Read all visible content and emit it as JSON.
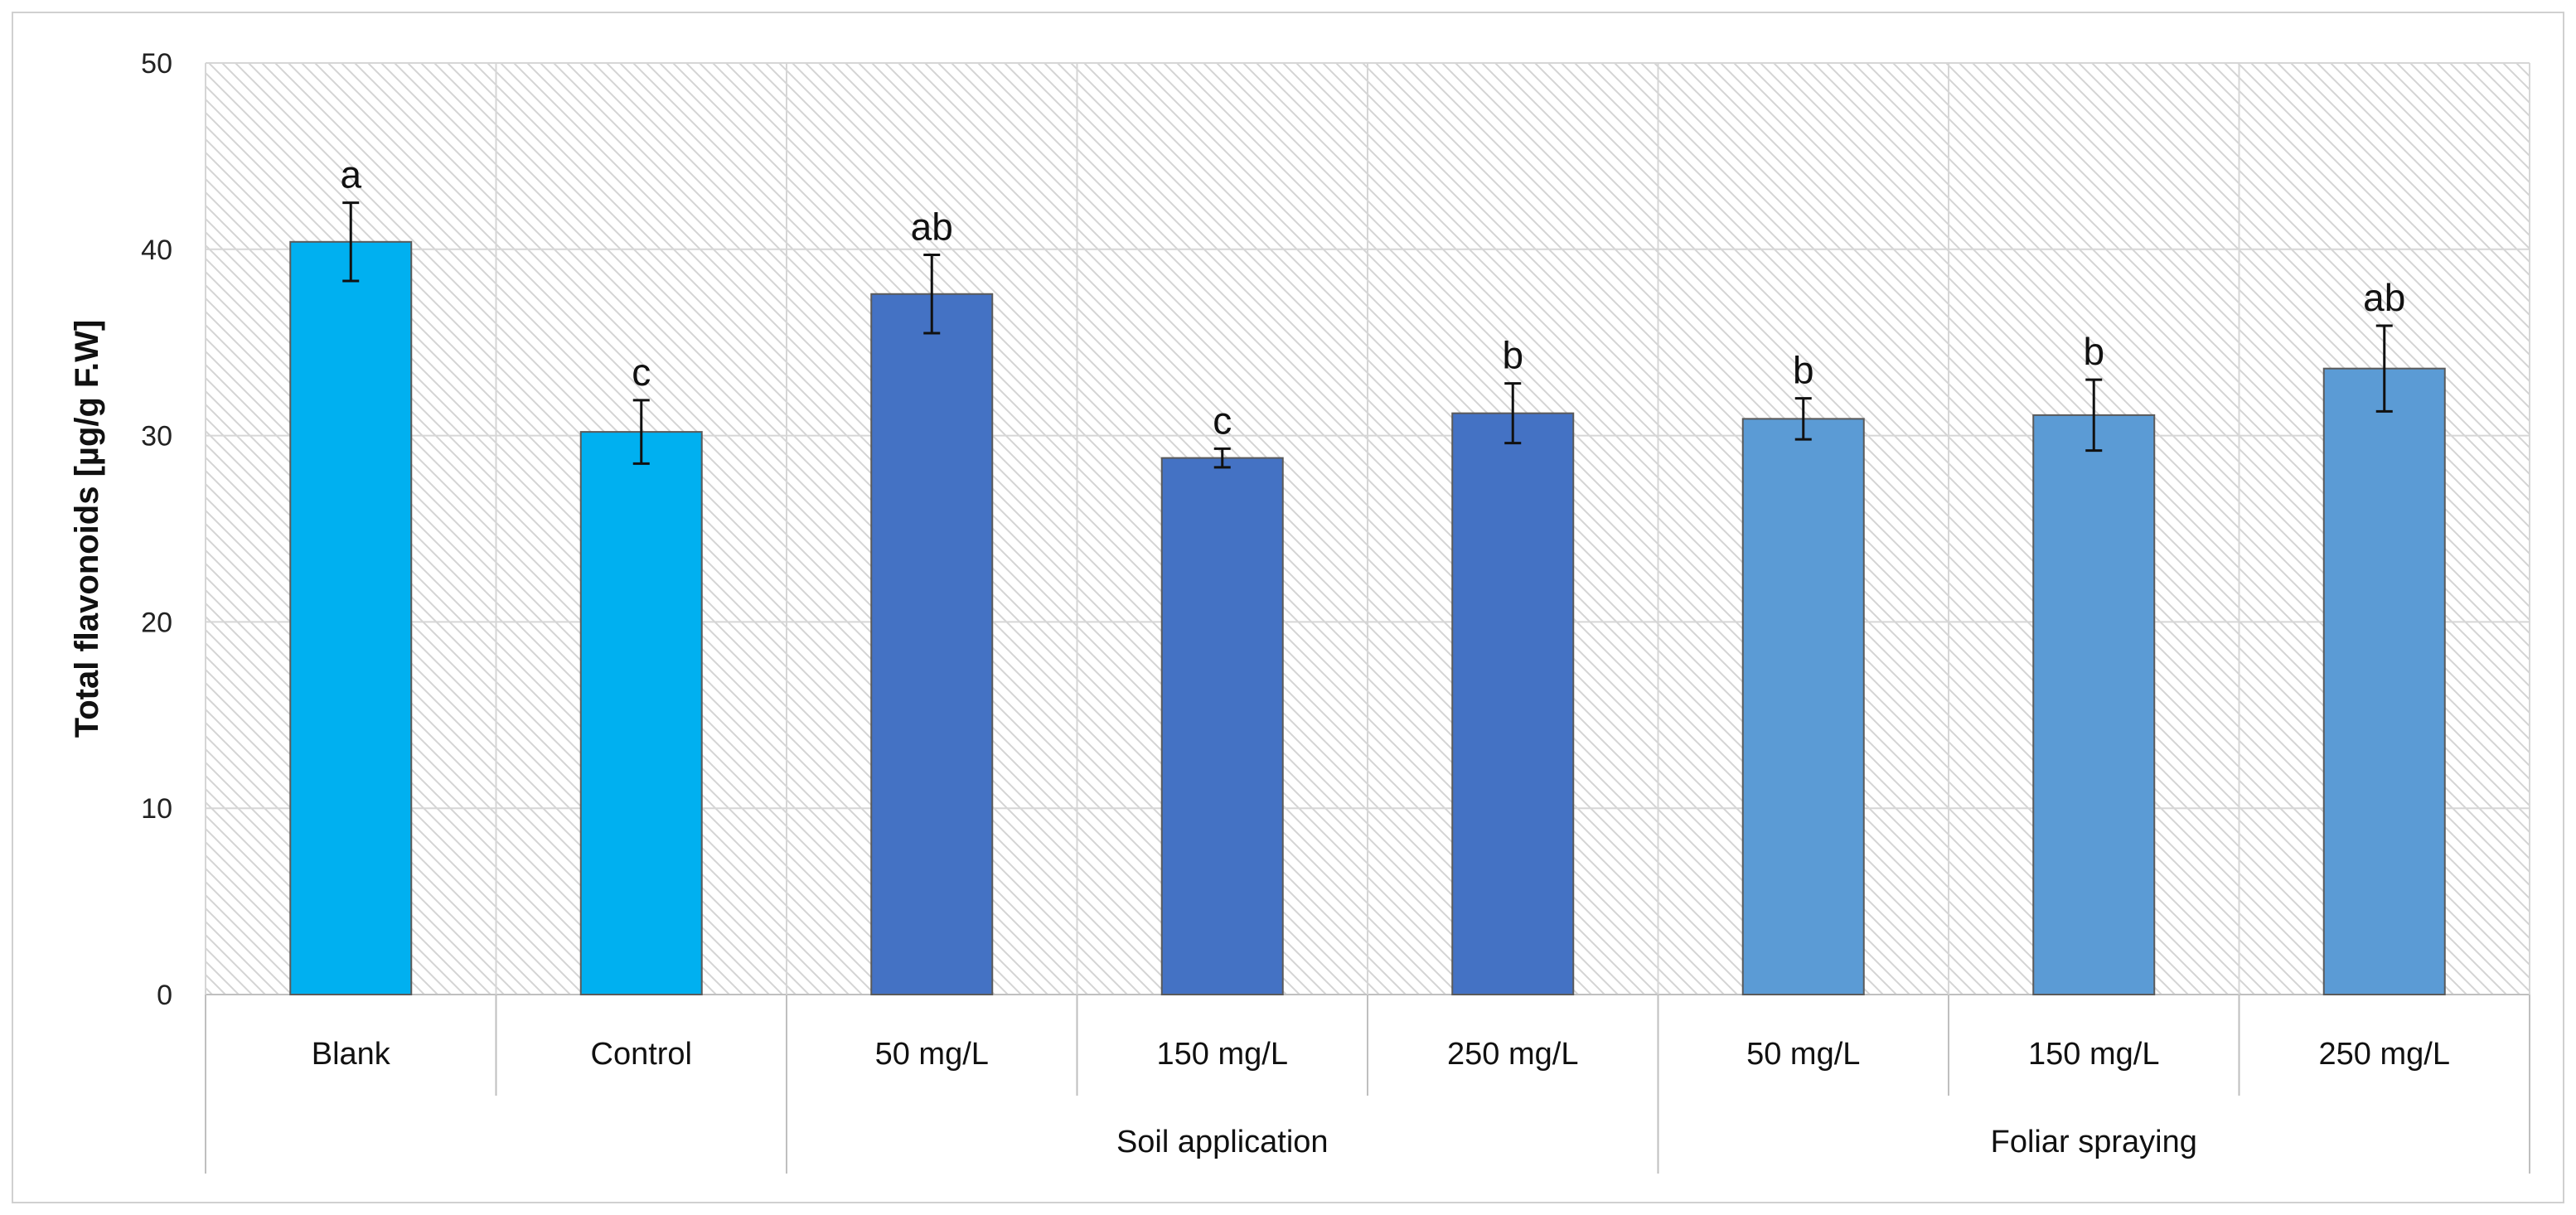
{
  "chart_data": {
    "type": "bar",
    "title": "",
    "xlabel": "",
    "ylabel": "Total flavonoids [µg/g F.W]",
    "ylim": [
      0,
      50
    ],
    "yticks": [
      0,
      10,
      20,
      30,
      40,
      50
    ],
    "grid": true,
    "categories": [
      "Blank",
      "Control",
      "50 mg/L",
      "150 mg/L",
      "250 mg/L",
      "50 mg/L",
      "150 mg/L",
      "250 mg/L"
    ],
    "values": [
      40.4,
      30.2,
      37.6,
      28.8,
      31.2,
      30.9,
      31.1,
      33.6
    ],
    "errors": [
      2.1,
      1.7,
      2.1,
      0.5,
      1.6,
      1.1,
      1.9,
      2.3
    ],
    "significance": [
      "a",
      "c",
      "ab",
      "c",
      "b",
      "b",
      "b",
      "ab"
    ],
    "bar_colors": [
      "#00b0f0",
      "#00b0f0",
      "#4472c4",
      "#4472c4",
      "#4472c4",
      "#5b9bd5",
      "#5b9bd5",
      "#5b9bd5"
    ],
    "groups": [
      {
        "label": "",
        "start": 0,
        "end": 1
      },
      {
        "label": "Soil application",
        "start": 2,
        "end": 4
      },
      {
        "label": "Foliar spraying",
        "start": 5,
        "end": 7
      }
    ]
  }
}
